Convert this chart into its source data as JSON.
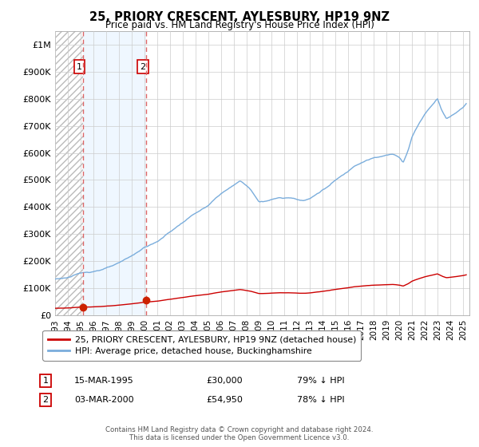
{
  "title": "25, PRIORY CRESCENT, AYLESBURY, HP19 9NZ",
  "subtitle": "Price paid vs. HM Land Registry's House Price Index (HPI)",
  "hpi_line_color": "#7aaddc",
  "price_line_color": "#cc0000",
  "sale_marker_color": "#cc2200",
  "vline_color": "#dd6666",
  "bg_shade_color": "#ddeeff",
  "sales": [
    {
      "date_num": 1995.21,
      "price": 30000,
      "label": "1"
    },
    {
      "date_num": 2000.17,
      "price": 54950,
      "label": "2"
    }
  ],
  "legend_line1": "25, PRIORY CRESCENT, AYLESBURY, HP19 9NZ (detached house)",
  "legend_line2": "HPI: Average price, detached house, Buckinghamshire",
  "table_rows": [
    {
      "num": "1",
      "date": "15-MAR-1995",
      "price": "£30,000",
      "note": "79% ↓ HPI"
    },
    {
      "num": "2",
      "date": "03-MAR-2000",
      "price": "£54,950",
      "note": "78% ↓ HPI"
    }
  ],
  "footer": "Contains HM Land Registry data © Crown copyright and database right 2024.\nThis data is licensed under the Open Government Licence v3.0.",
  "ylim": [
    0,
    1050000
  ],
  "xlim": [
    1993.0,
    2025.5
  ],
  "yticks": [
    0,
    100000,
    200000,
    300000,
    400000,
    500000,
    600000,
    700000,
    800000,
    900000,
    1000000
  ],
  "ytick_labels": [
    "£0",
    "£100K",
    "£200K",
    "£300K",
    "£400K",
    "£500K",
    "£600K",
    "£700K",
    "£800K",
    "£900K",
    "£1M"
  ]
}
